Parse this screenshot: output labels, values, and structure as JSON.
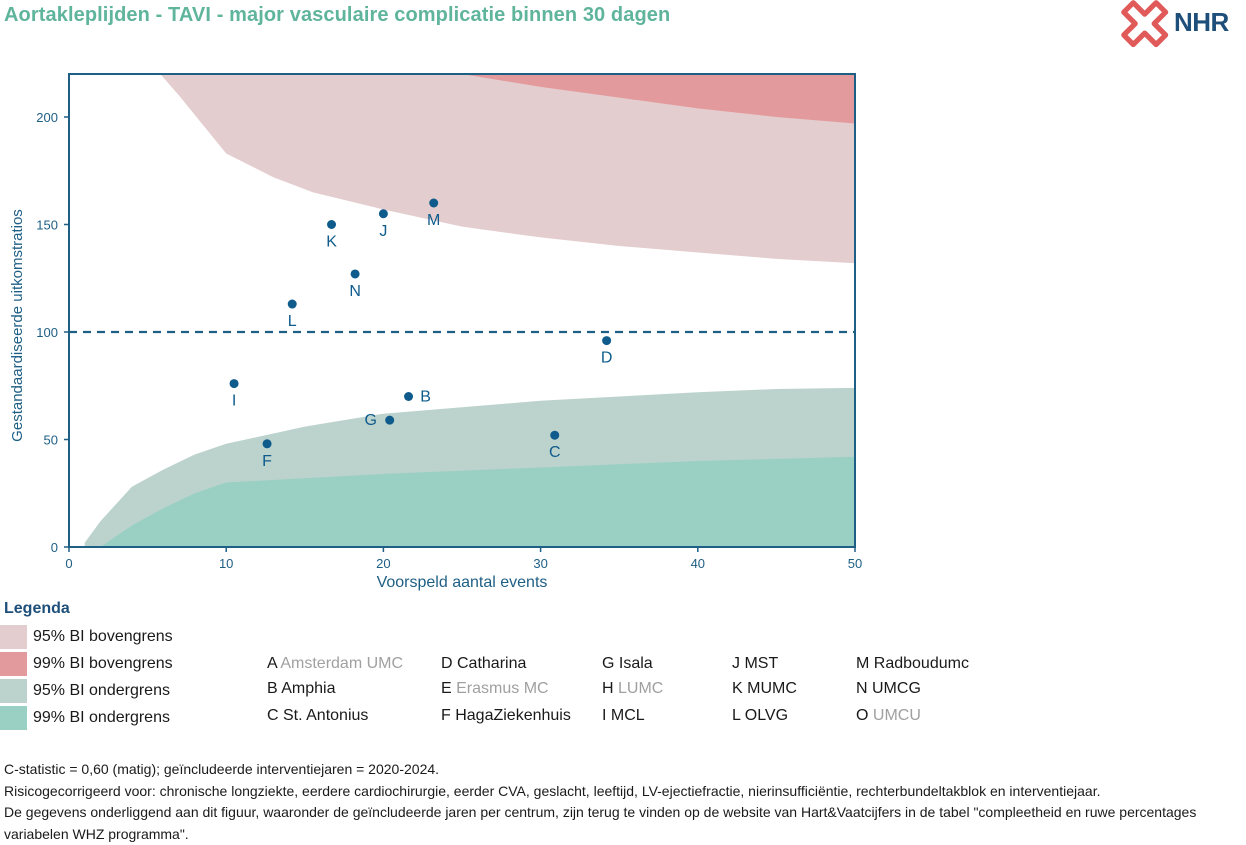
{
  "title": "Aortakleplijden - TAVI - major vasculaire complicatie binnen 30 dagen",
  "logo": {
    "text": "NHR",
    "icon": "nhr-cross-icon",
    "mark_color": "#e05a5a",
    "text_color": "#1e4f7a"
  },
  "colors": {
    "upper95": "#e4cdcf",
    "upper99": "#e39a9c",
    "lower95": "#bcd2cd",
    "lower99": "#9ad0c3",
    "axis": "#1e5f85",
    "point": "#0e5b8c",
    "reference": "#1e5f85"
  },
  "chart_data": {
    "type": "scatter",
    "xlabel": "Voorspeld aantal events",
    "ylabel": "Gestandaardiseerde uitkomstratios",
    "xlim": [
      0,
      50
    ],
    "ylim": [
      0,
      220
    ],
    "xticks": [
      0,
      10,
      20,
      30,
      40,
      50
    ],
    "yticks": [
      0,
      50,
      100,
      150,
      200
    ],
    "reference_line": 100,
    "points": [
      {
        "label": "K",
        "x": 16.7,
        "y": 150
      },
      {
        "label": "J",
        "x": 20.0,
        "y": 155
      },
      {
        "label": "M",
        "x": 23.2,
        "y": 160
      },
      {
        "label": "N",
        "x": 18.2,
        "y": 127
      },
      {
        "label": "L",
        "x": 14.2,
        "y": 113
      },
      {
        "label": "D",
        "x": 34.2,
        "y": 96
      },
      {
        "label": "I",
        "x": 10.5,
        "y": 76
      },
      {
        "label": "B",
        "x": 21.6,
        "y": 70
      },
      {
        "label": "G",
        "x": 20.4,
        "y": 59
      },
      {
        "label": "F",
        "x": 12.6,
        "y": 48
      },
      {
        "label": "C",
        "x": 30.9,
        "y": 52
      }
    ],
    "bands": {
      "upper95": [
        [
          5.8,
          220
        ],
        [
          7,
          210
        ],
        [
          10,
          183
        ],
        [
          13,
          172
        ],
        [
          15.5,
          165
        ],
        [
          20,
          157
        ],
        [
          25,
          149
        ],
        [
          30,
          144
        ],
        [
          35,
          140
        ],
        [
          40,
          137
        ],
        [
          45,
          134
        ],
        [
          50,
          132
        ]
      ],
      "upper99": [
        [
          25,
          220
        ],
        [
          30,
          214
        ],
        [
          35,
          209
        ],
        [
          40,
          204
        ],
        [
          45,
          200
        ],
        [
          50,
          197
        ]
      ],
      "lower95": [
        [
          1,
          2
        ],
        [
          2,
          12
        ],
        [
          3,
          20
        ],
        [
          4,
          28
        ],
        [
          6,
          36
        ],
        [
          8,
          43
        ],
        [
          10,
          48
        ],
        [
          12.5,
          52
        ],
        [
          15,
          56
        ],
        [
          20,
          62
        ],
        [
          25,
          65
        ],
        [
          30,
          68
        ],
        [
          35,
          70
        ],
        [
          40,
          72
        ],
        [
          45,
          73.5
        ],
        [
          50,
          74
        ]
      ],
      "lower99": [
        [
          2,
          0
        ],
        [
          4,
          10
        ],
        [
          6,
          18
        ],
        [
          8,
          25
        ],
        [
          10,
          30
        ],
        [
          20,
          34
        ],
        [
          30,
          37
        ],
        [
          40,
          40
        ],
        [
          50,
          42
        ]
      ]
    }
  },
  "legend": {
    "title": "Legenda",
    "items": [
      {
        "label": "95% BI bovengrens",
        "color_key": "upper95"
      },
      {
        "label": "99% BI bovengrens",
        "color_key": "upper99"
      },
      {
        "label": "95% BI ondergrens",
        "color_key": "lower95"
      },
      {
        "label": "99% BI ondergrens",
        "color_key": "lower99"
      }
    ],
    "centers": [
      {
        "code": "A",
        "name": "Amsterdam UMC",
        "excluded": true
      },
      {
        "code": "B",
        "name": "Amphia",
        "excluded": false
      },
      {
        "code": "C",
        "name": "St. Antonius",
        "excluded": false
      },
      {
        "code": "D",
        "name": "Catharina",
        "excluded": false
      },
      {
        "code": "E",
        "name": "Erasmus MC",
        "excluded": true
      },
      {
        "code": "F",
        "name": "HagaZiekenhuis",
        "excluded": false
      },
      {
        "code": "G",
        "name": "Isala",
        "excluded": false
      },
      {
        "code": "H",
        "name": "LUMC",
        "excluded": true
      },
      {
        "code": "I",
        "name": "MCL",
        "excluded": false
      },
      {
        "code": "J",
        "name": "MST",
        "excluded": false
      },
      {
        "code": "K",
        "name": "MUMC",
        "excluded": false
      },
      {
        "code": "L",
        "name": "OLVG",
        "excluded": false
      },
      {
        "code": "M",
        "name": "Radboudumc",
        "excluded": false
      },
      {
        "code": "N",
        "name": "UMCG",
        "excluded": false
      },
      {
        "code": "O",
        "name": "UMCU",
        "excluded": true
      }
    ]
  },
  "notes": [
    "C-statistic =  0,60 (matig); geïncludeerde interventiejaren = 2020-2024.",
    "Risicogecorrigeerd voor: chronische longziekte, eerdere cardiochirurgie, eerder CVA, geslacht, leeftijd, LV-ejectiefractie, nierinsufficiëntie, rechterbundeltakblok en interventiejaar.",
    "De gegevens onderliggend aan dit figuur, waaronder de geïncludeerde jaren per centrum, zijn terug te vinden op de website van Hart&Vaatcijfers in de tabel \"compleetheid en ruwe percentages variabelen WHZ programma\"."
  ]
}
